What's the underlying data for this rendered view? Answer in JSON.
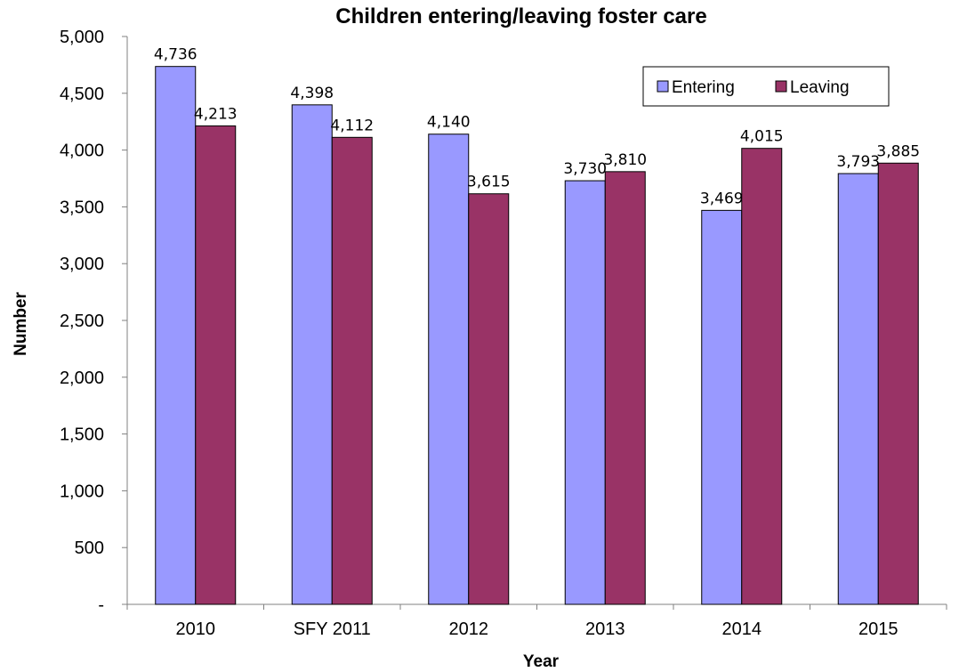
{
  "chart_data": {
    "type": "bar",
    "title": "Children entering/leaving foster care",
    "xlabel": "Year",
    "ylabel": "Number",
    "categories": [
      "2010",
      "SFY 2011",
      "2012",
      "2013",
      "2014",
      "2015"
    ],
    "series": [
      {
        "name": "Entering",
        "values": [
          4736,
          4398,
          4140,
          3730,
          3469,
          3793
        ],
        "color": "#9999ff"
      },
      {
        "name": "Leaving",
        "values": [
          4213,
          4112,
          3615,
          3810,
          4015,
          3885
        ],
        "color": "#993366"
      }
    ],
    "data_labels": [
      [
        "4,736",
        "4,398",
        "4,140",
        "3,730",
        "3,469",
        "3,793"
      ],
      [
        "4,213",
        "4,112",
        "3,615",
        "3,810",
        "4,015",
        "3,885"
      ]
    ],
    "ylim": [
      0,
      5000
    ],
    "yticks": [
      0,
      500,
      1000,
      1500,
      2000,
      2500,
      3000,
      3500,
      4000,
      4500,
      5000
    ],
    "ytick_labels": [
      "-",
      "500",
      "1,000",
      "1,500",
      "2,000",
      "2,500",
      "3,000",
      "3,500",
      "4,000",
      "4,500",
      "5,000"
    ],
    "grid": false,
    "legend_position": "top-right"
  }
}
